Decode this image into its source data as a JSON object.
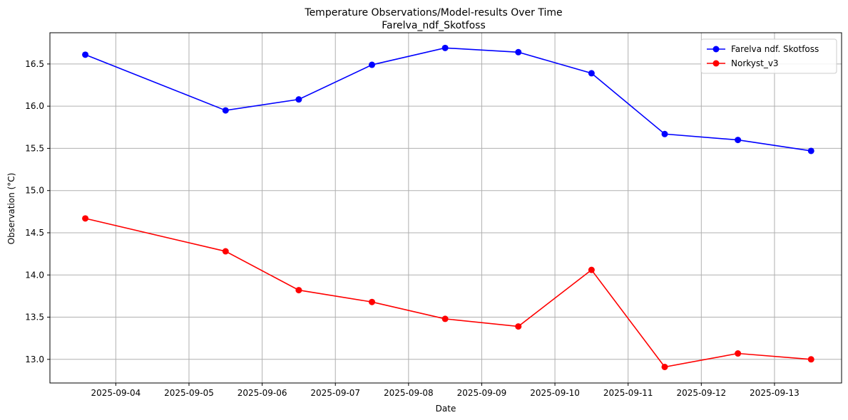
{
  "chart_data": {
    "type": "line",
    "title": "Temperature Observations/Model-results Over Time",
    "subtitle": "Farelva_ndf_Skotfoss",
    "xlabel": "Date",
    "ylabel": "Observation (°C)",
    "x_ticks": [
      "2025-09-04",
      "2025-09-05",
      "2025-09-06",
      "2025-09-07",
      "2025-09-08",
      "2025-09-09",
      "2025-09-10",
      "2025-09-11",
      "2025-09-12",
      "2025-09-13"
    ],
    "y_ticks": [
      13.0,
      13.5,
      14.0,
      14.5,
      15.0,
      15.5,
      16.0,
      16.5
    ],
    "xlim": [
      "2025-09-03 02:24",
      "2025-09-13 22:00"
    ],
    "ylim": [
      12.72,
      16.87
    ],
    "grid": true,
    "legend_position": "top-right",
    "series": [
      {
        "name": "Farelva ndf. Skotfoss",
        "color": "#0000ff",
        "x": [
          "2025-09-03 14:00",
          "2025-09-05 12:00",
          "2025-09-06 12:00",
          "2025-09-07 12:00",
          "2025-09-08 12:00",
          "2025-09-09 12:00",
          "2025-09-10 12:00",
          "2025-09-11 12:00",
          "2025-09-12 12:00",
          "2025-09-13 12:00"
        ],
        "values": [
          16.61,
          15.95,
          16.08,
          16.49,
          16.69,
          16.64,
          16.39,
          15.67,
          15.6,
          15.47
        ]
      },
      {
        "name": "Norkyst_v3",
        "color": "#ff0000",
        "x": [
          "2025-09-03 14:00",
          "2025-09-05 12:00",
          "2025-09-06 12:00",
          "2025-09-07 12:00",
          "2025-09-08 12:00",
          "2025-09-09 12:00",
          "2025-09-10 12:00",
          "2025-09-11 12:00",
          "2025-09-12 12:00",
          "2025-09-13 12:00"
        ],
        "values": [
          14.67,
          14.28,
          13.82,
          13.68,
          13.48,
          13.39,
          14.06,
          12.91,
          13.07,
          13.0
        ]
      }
    ]
  }
}
